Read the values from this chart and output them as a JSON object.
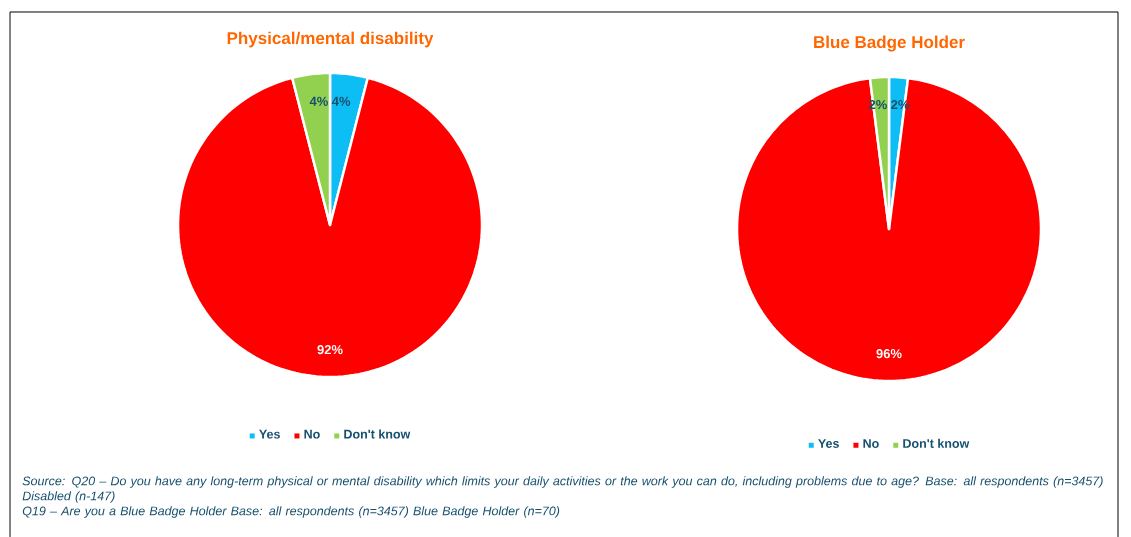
{
  "chart_data": [
    {
      "type": "pie",
      "title": "Physical/mental disability",
      "categories": [
        "Yes",
        "No",
        "Don't know"
      ],
      "values": [
        4,
        92,
        4
      ],
      "colors": [
        "#0dbef5",
        "#ff0000",
        "#92d050"
      ],
      "value_labels": [
        "4%",
        "92%",
        "4%"
      ],
      "legend": "bottom",
      "annotations": [
        "Source: Q20 – Do you have any long-term physical or mental disability which limits your daily activities or the work you can do, including problems due to age?  Base: all respondents (n=3457)  Disabled (n-147)",
        "Q19 – Are you a Blue Badge Holder Base: all respondents (n=3457)  Blue Badge Holder (n=70)"
      ]
    },
    {
      "type": "pie",
      "title": "Blue Badge Holder",
      "categories": [
        "Yes",
        "No",
        "Don't know"
      ],
      "values": [
        2,
        96,
        2
      ],
      "colors": [
        "#0dbef5",
        "#ff0000",
        "#92d050"
      ],
      "value_labels": [
        "2%",
        "96%",
        "2%"
      ],
      "legend": "bottom"
    }
  ]
}
